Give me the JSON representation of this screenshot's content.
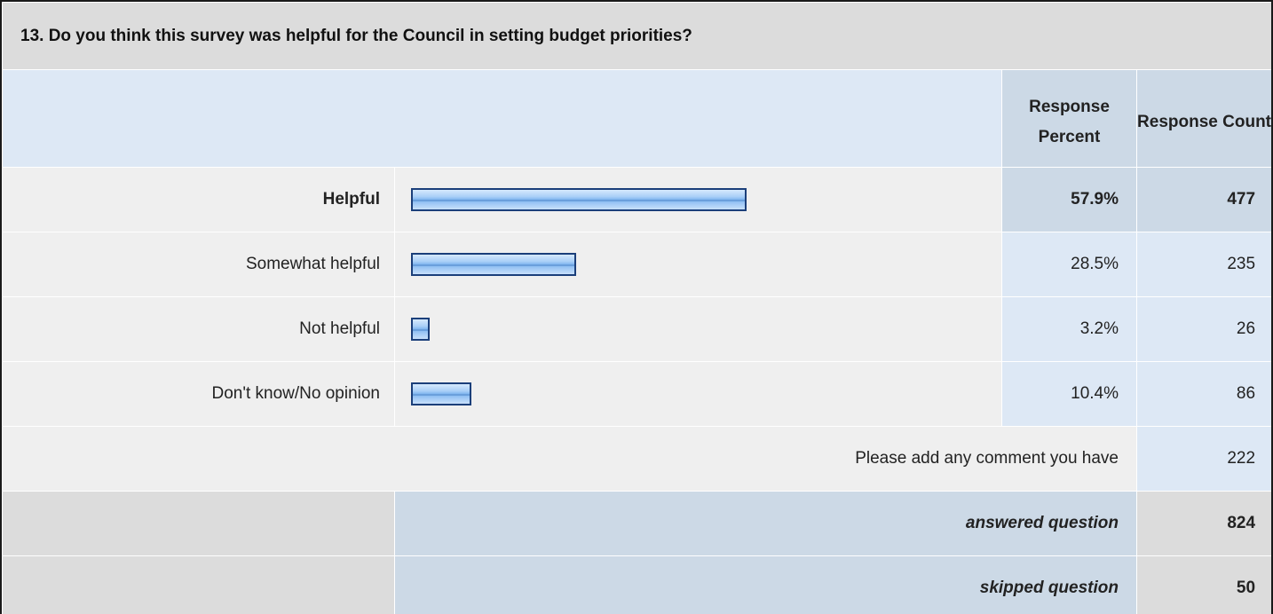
{
  "chart_data": {
    "type": "bar",
    "title": "13. Do you think this survey was helpful for the Council in setting budget priorities?",
    "headers": {
      "percent": "Response Percent",
      "count": "Response Count"
    },
    "categories": [
      "Helpful",
      "Somewhat helpful",
      "Not helpful",
      "Don't know/No opinion"
    ],
    "percent_values": [
      57.9,
      28.5,
      3.2,
      10.4
    ],
    "percent_labels": [
      "57.9%",
      "28.5%",
      "3.2%",
      "10.4%"
    ],
    "count_labels": [
      "477",
      "235",
      "26",
      "86"
    ],
    "highlighted_category": "Helpful",
    "xlim": [
      0,
      100
    ],
    "comment": {
      "label": "Please add any comment you have",
      "count": "222"
    },
    "summary": {
      "answered_label": "answered question",
      "answered": "824",
      "skipped_label": "skipped question",
      "skipped": "50"
    }
  }
}
